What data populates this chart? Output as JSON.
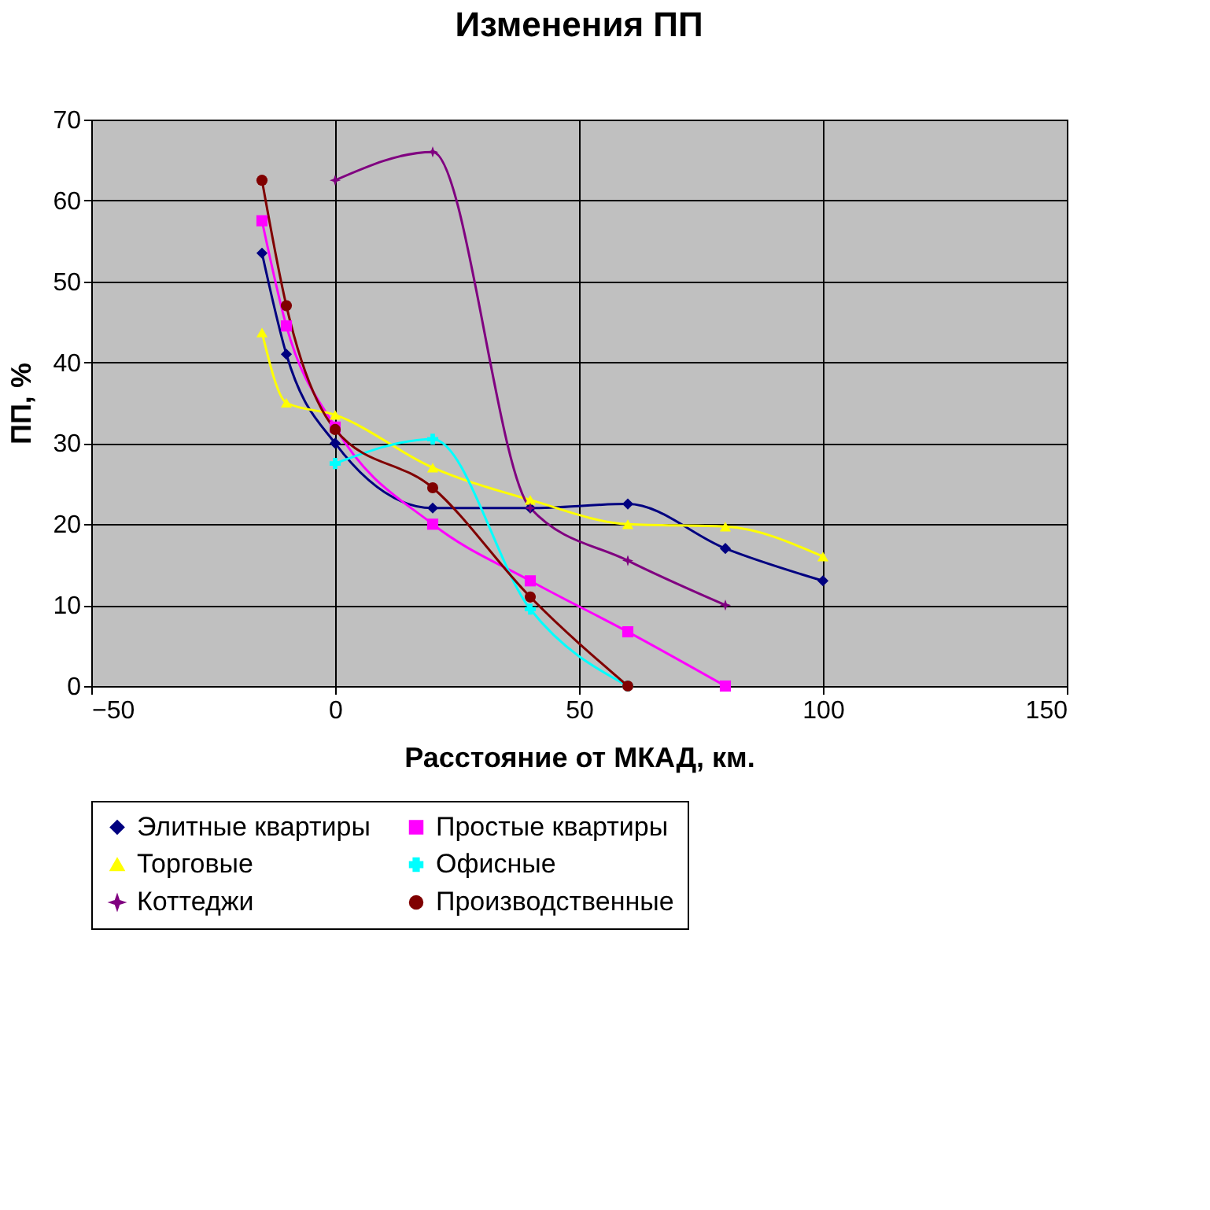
{
  "chart_data": {
    "type": "line",
    "title": "Изменения ПП",
    "xlabel": "Расстояние от МКАД, км.",
    "ylabel": "ПП, %",
    "xlim": [
      -50,
      150
    ],
    "xticks": [
      -50,
      0,
      50,
      100,
      150
    ],
    "ylim": [
      0,
      70
    ],
    "yticks": [
      0,
      10,
      20,
      30,
      40,
      50,
      60,
      70
    ],
    "grid": true,
    "legend": "bottom",
    "line_style": "solid",
    "series": [
      {
        "name": "Элитные квартиры",
        "color": "#000080",
        "marker": "diamond",
        "x": [
          -15,
          -10,
          0,
          20,
          40,
          60,
          80,
          100
        ],
        "values": [
          53.5,
          41,
          30,
          22,
          22,
          22.5,
          17,
          13
        ]
      },
      {
        "name": "Простые квартиры",
        "color": "#ff00ff",
        "marker": "square",
        "x": [
          -15,
          -10,
          0,
          20,
          40,
          60,
          80
        ],
        "values": [
          57.5,
          44.5,
          32,
          20,
          13,
          6.7,
          0
        ]
      },
      {
        "name": "Торговые",
        "color": "#ffff00",
        "marker": "triangle",
        "x": [
          -15,
          -10,
          0,
          20,
          40,
          60,
          80,
          100
        ],
        "values": [
          43.7,
          35,
          33.5,
          27,
          23,
          20,
          19.7,
          16
        ]
      },
      {
        "name": "Офисные",
        "color": "#00ffff",
        "marker": "cross",
        "x": [
          0,
          20,
          40,
          60
        ],
        "values": [
          27.5,
          30.5,
          9.5,
          0
        ]
      },
      {
        "name": "Коттеджи",
        "color": "#800080",
        "marker": "star",
        "x": [
          0,
          20,
          40,
          60,
          80
        ],
        "values": [
          62.5,
          66,
          22,
          15.5,
          10
        ]
      },
      {
        "name": "Производственные",
        "color": "#800000",
        "marker": "circle",
        "x": [
          -15,
          -10,
          0,
          20,
          40,
          60
        ],
        "values": [
          62.5,
          47,
          31.7,
          24.5,
          11,
          0
        ]
      }
    ]
  }
}
